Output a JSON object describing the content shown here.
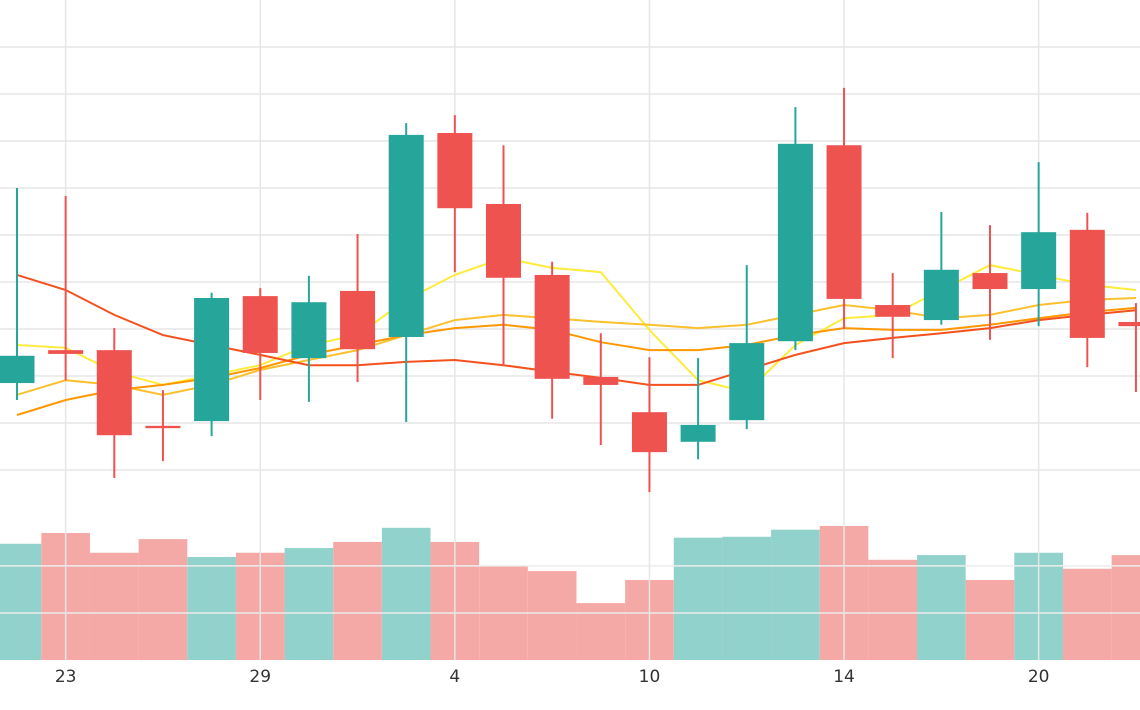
{
  "chart_data": {
    "type": "candlestick",
    "categories": [
      null,
      "23",
      null,
      null,
      null,
      "29",
      null,
      null,
      null,
      "4",
      null,
      null,
      null,
      "10",
      null,
      null,
      null,
      "14",
      null,
      null,
      null,
      "20",
      null,
      null
    ],
    "open": [
      2.85,
      3.55,
      3.55,
      1.94,
      2.04,
      4.7,
      3.38,
      4.81,
      3.83,
      8.17,
      6.66,
      5.15,
      2.98,
      2.23,
      1.6,
      2.06,
      3.74,
      7.91,
      4.51,
      4.19,
      5.19,
      4.85,
      6.11,
      4.15
    ],
    "high": [
      7.0,
      6.83,
      4.02,
      2.7,
      4.77,
      4.87,
      5.13,
      6.02,
      8.38,
      8.55,
      7.91,
      5.43,
      3.91,
      3.4,
      3.38,
      5.36,
      8.72,
      9.13,
      5.19,
      6.49,
      6.21,
      7.55,
      6.47,
      4.55
    ],
    "low": [
      2.49,
      2.91,
      0.83,
      1.19,
      1.72,
      2.49,
      2.45,
      2.87,
      2.02,
      5.21,
      3.21,
      2.09,
      1.53,
      0.53,
      1.23,
      1.87,
      3.55,
      4.0,
      3.38,
      4.09,
      3.77,
      4.06,
      3.19,
      2.66
    ],
    "close": [
      3.43,
      3.47,
      1.74,
      1.89,
      4.66,
      3.49,
      4.57,
      3.57,
      8.13,
      6.57,
      5.09,
      2.94,
      2.81,
      1.38,
      1.96,
      3.7,
      7.94,
      4.64,
      4.26,
      5.26,
      4.85,
      6.06,
      3.81,
      4.06
    ],
    "volume": [
      2.47,
      2.7,
      2.28,
      2.57,
      2.19,
      2.28,
      2.38,
      2.51,
      2.81,
      2.51,
      2.0,
      1.89,
      1.21,
      1.7,
      2.6,
      2.62,
      2.77,
      2.85,
      2.13,
      2.23,
      1.7,
      2.28,
      1.94,
      2.23
    ],
    "up_color": "#26a69a",
    "down_color": "#ef5350",
    "up_volume_color": "#92d2cc",
    "down_volume_color": "#f5a9a6",
    "moving_averages": [
      {
        "color": "#ffeb3b",
        "values": [
          3.66,
          3.6,
          3.09,
          2.81,
          3.02,
          3.23,
          3.66,
          3.87,
          4.62,
          5.15,
          5.51,
          5.3,
          5.21,
          3.98,
          2.91,
          2.66,
          3.66,
          4.23,
          4.3,
          4.83,
          5.36,
          5.15,
          4.94,
          4.83
        ]
      },
      {
        "color": "#fbc02d",
        "values": [
          2.6,
          2.91,
          2.81,
          2.6,
          2.81,
          3.13,
          3.34,
          3.55,
          3.87,
          4.19,
          4.3,
          4.23,
          4.15,
          4.09,
          4.02,
          4.09,
          4.3,
          4.51,
          4.4,
          4.23,
          4.3,
          4.51,
          4.62,
          4.66
        ]
      },
      {
        "color": "#ff9800",
        "values": [
          2.17,
          2.49,
          2.7,
          2.81,
          2.96,
          3.17,
          3.45,
          3.66,
          3.87,
          4.02,
          4.09,
          3.98,
          3.72,
          3.55,
          3.55,
          3.66,
          3.87,
          4.02,
          3.98,
          3.98,
          4.09,
          4.23,
          4.36,
          4.45
        ]
      },
      {
        "color": "#f4511e",
        "values": [
          5.15,
          4.83,
          4.3,
          3.87,
          3.66,
          3.45,
          3.23,
          3.23,
          3.3,
          3.34,
          3.23,
          3.09,
          2.96,
          2.81,
          2.81,
          3.13,
          3.45,
          3.7,
          3.81,
          3.91,
          4.02,
          4.19,
          4.3,
          4.4
        ]
      }
    ],
    "ylim": [
      0,
      11
    ],
    "yticks": [
      1,
      2,
      3,
      4,
      5,
      6,
      7,
      8,
      9,
      10
    ],
    "volume_ylim": [
      0,
      3.04
    ],
    "volume_yticks": [
      1,
      2
    ],
    "grid": true
  }
}
